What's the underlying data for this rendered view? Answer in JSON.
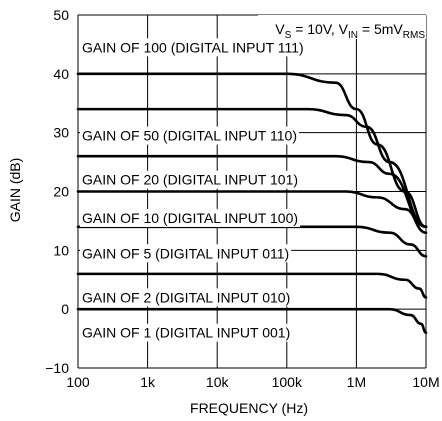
{
  "chart_data": {
    "type": "line",
    "xlabel": "FREQUENCY (Hz)",
    "ylabel": "GAIN (dB)",
    "xscale": "log",
    "xlim": [
      100,
      10000000
    ],
    "ylim": [
      -10,
      50
    ],
    "grid": true,
    "x_ticks": [
      {
        "value": 100,
        "label": "100"
      },
      {
        "value": 1000,
        "label": "1k"
      },
      {
        "value": 10000,
        "label": "10k"
      },
      {
        "value": 100000,
        "label": "100k"
      },
      {
        "value": 1000000,
        "label": "1M"
      },
      {
        "value": 10000000,
        "label": "10M"
      }
    ],
    "y_ticks": [
      {
        "value": -10,
        "label": "−10"
      },
      {
        "value": 0,
        "label": "0"
      },
      {
        "value": 10,
        "label": "10"
      },
      {
        "value": 20,
        "label": "20"
      },
      {
        "value": 30,
        "label": "30"
      },
      {
        "value": 40,
        "label": "40"
      },
      {
        "value": 50,
        "label": "50"
      }
    ],
    "annotation": {
      "prefix1": "V",
      "sub1": "S",
      "mid": " = 10V, V",
      "sub2": "IN",
      "mid2": " = 5mV",
      "sub3": "RMS"
    },
    "series": [
      {
        "name": "GAIN OF 100 (DIGITAL INPUT 111)",
        "dc_gain_db": 40,
        "corner_hz": 700000,
        "label_y_db": 44.5,
        "points": [
          [
            100,
            40
          ],
          [
            100000,
            40
          ],
          [
            500000,
            38.5
          ],
          [
            1000000,
            34
          ],
          [
            2000000,
            28
          ],
          [
            5000000,
            20
          ],
          [
            10000000,
            14
          ]
        ]
      },
      {
        "name": "GAIN OF 50 (DIGITAL INPUT 110)",
        "dc_gain_db": 34,
        "corner_hz": 1400000,
        "label_y_db": 29.5,
        "points": [
          [
            100,
            34
          ],
          [
            200000,
            34
          ],
          [
            700000,
            33
          ],
          [
            1400000,
            31
          ],
          [
            3000000,
            25
          ],
          [
            10000000,
            14
          ]
        ]
      },
      {
        "name": "GAIN OF 20 (DIGITAL INPUT 101)",
        "dc_gain_db": 26,
        "corner_hz": 3000000,
        "label_y_db": 22,
        "points": [
          [
            100,
            26
          ],
          [
            500000,
            26
          ],
          [
            1500000,
            25
          ],
          [
            3000000,
            23
          ],
          [
            10000000,
            14
          ]
        ]
      },
      {
        "name": "GAIN OF 10 (DIGITAL INPUT 100)",
        "dc_gain_db": 20,
        "corner_hz": 5000000,
        "label_y_db": 15.5,
        "points": [
          [
            100,
            20
          ],
          [
            700000,
            20
          ],
          [
            2000000,
            19
          ],
          [
            5000000,
            17
          ],
          [
            10000000,
            13
          ]
        ]
      },
      {
        "name": "GAIN OF 5 (DIGITAL INPUT 011)",
        "dc_gain_db": 14,
        "corner_hz": 8000000,
        "label_y_db": 9.5,
        "points": [
          [
            100,
            14
          ],
          [
            1000000,
            14
          ],
          [
            3000000,
            13
          ],
          [
            6000000,
            11
          ],
          [
            10000000,
            9
          ]
        ]
      },
      {
        "name": "GAIN OF 2 (DIGITAL INPUT 010)",
        "dc_gain_db": 6,
        "corner_hz": 12000000,
        "label_y_db": 2,
        "points": [
          [
            100,
            6
          ],
          [
            2000000,
            6
          ],
          [
            5000000,
            5
          ],
          [
            8000000,
            3.5
          ],
          [
            10000000,
            2
          ]
        ]
      },
      {
        "name": "GAIN OF 1 (DIGITAL INPUT 001)",
        "dc_gain_db": 0,
        "corner_hz": 15000000,
        "label_y_db": -4,
        "points": [
          [
            100,
            0
          ],
          [
            3000000,
            0
          ],
          [
            6000000,
            -1
          ],
          [
            8500000,
            -2.5
          ],
          [
            10000000,
            -4
          ]
        ]
      }
    ]
  }
}
